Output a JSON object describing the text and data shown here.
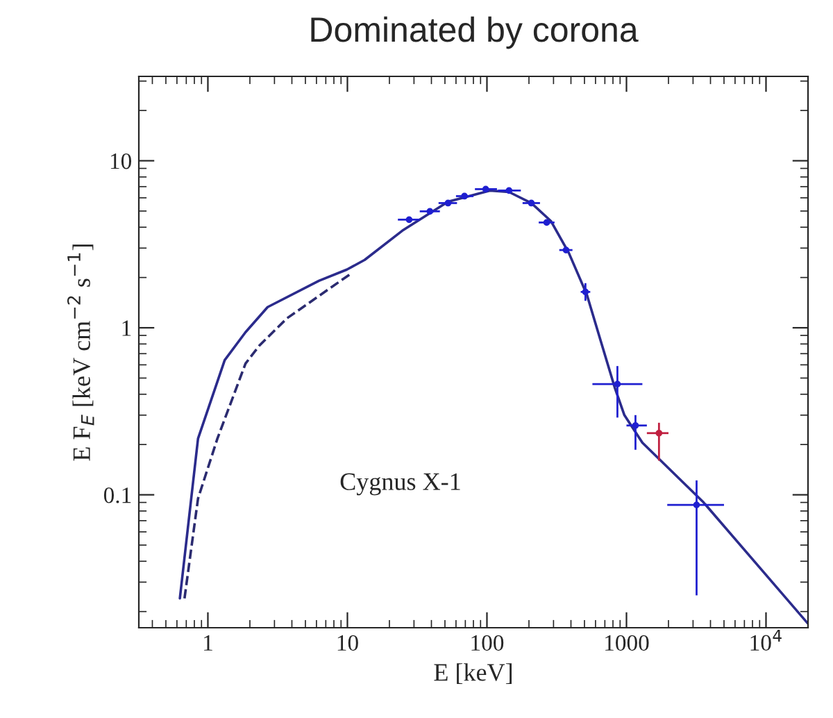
{
  "chart_data": {
    "type": "line",
    "title": "Dominated by corona",
    "xlabel": "E [keV]",
    "ylabel": "E F$_{E}$ [keV cm$^{−2}$ s$^{−1}$]",
    "log": "xy",
    "xlim": [
      0.32,
      20000
    ],
    "ylim": [
      0.016,
      32
    ],
    "xticks": [
      1,
      10,
      100,
      1000,
      {
        "value": 10000,
        "label": "10$^{4}$"
      }
    ],
    "yticks": [
      0.1,
      1,
      10
    ],
    "grid": false,
    "legend": false,
    "annotations": [
      "Cygnus X-1"
    ],
    "series": [
      {
        "line_style": "solid",
        "color": "#2b2b8c",
        "x": [
          0.63,
          0.85,
          1.32,
          1.86,
          2.68,
          6.25,
          9.9,
          13.3,
          24.7,
          52.6,
          105,
          144,
          208,
          287,
          386,
          520,
          655,
          823,
          966,
          1300,
          3570,
          19900
        ],
        "values": [
          0.024,
          0.217,
          0.64,
          0.94,
          1.33,
          1.91,
          2.23,
          2.55,
          3.81,
          5.69,
          6.63,
          6.5,
          5.58,
          4.36,
          2.81,
          1.58,
          0.83,
          0.44,
          0.3,
          0.205,
          0.09,
          0.017
        ]
      },
      {
        "line_style": "dashed",
        "color": "#2b2b70",
        "x": [
          0.68,
          0.85,
          1.17,
          1.86,
          2.33,
          3.69,
          10.6
        ],
        "values": [
          0.024,
          0.095,
          0.217,
          0.61,
          0.78,
          1.14,
          2.11
        ]
      },
      {
        "type": "scatter",
        "marker": "circle",
        "color": "#1f1fd0",
        "x": [
          27.7,
          39,
          52.6,
          69,
          98,
          144,
          208,
          268,
          369,
          508,
          861,
          1160,
          3180
        ],
        "values": [
          4.44,
          4.98,
          5.58,
          6.14,
          6.76,
          6.63,
          5.58,
          4.27,
          2.92,
          1.64,
          0.46,
          0.26,
          0.087
        ],
        "xerrors": [
          [
            23,
            33
          ],
          [
            33,
            46
          ],
          [
            45,
            61
          ],
          [
            60,
            80
          ],
          [
            82,
            118
          ],
          [
            120,
            175
          ],
          [
            180,
            240
          ],
          [
            235,
            305
          ],
          [
            330,
            410
          ],
          [
            470,
            550
          ],
          [
            570,
            1300
          ],
          [
            1000,
            1400
          ],
          [
            1960,
            5000
          ]
        ],
        "errors": [
          null,
          null,
          null,
          null,
          null,
          null,
          null,
          null,
          null,
          [
            1.45,
            1.85
          ],
          [
            0.29,
            0.59
          ],
          [
            0.186,
            0.3
          ],
          [
            0.025,
            0.122
          ]
        ]
      },
      {
        "type": "scatter",
        "marker": "circle",
        "color": "#c02040",
        "x": [
          1710
        ],
        "values": [
          0.234
        ],
        "xerrors": [
          [
            1400,
            2000
          ]
        ],
        "errors": [
          [
            0.16,
            0.27
          ]
        ]
      }
    ]
  }
}
